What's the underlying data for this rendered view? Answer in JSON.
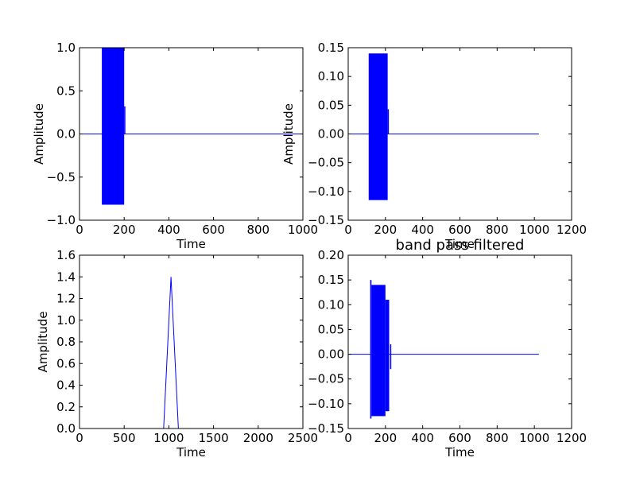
{
  "chart_data": [
    {
      "type": "line",
      "title": "",
      "xlabel": "Time",
      "ylabel": "Amplitude",
      "xlim": [
        0,
        1000
      ],
      "ylim": [
        -1.0,
        1.0
      ],
      "xticks": [
        0,
        200,
        400,
        600,
        800,
        1000
      ],
      "xtick_labels": [
        "0",
        "200",
        "400",
        "600",
        "800",
        "1000"
      ],
      "yticks": [
        -1.0,
        -0.5,
        0.0,
        0.5,
        1.0
      ],
      "ytick_labels": [
        "−1.0",
        "−0.5",
        "0.0",
        "0.5",
        "1.0"
      ],
      "grid": false,
      "color": "#0000ff",
      "series": [
        {
          "x": [
            0,
            100,
            200,
            200,
            1000
          ],
          "y": [
            0,
            0,
            0,
            0,
            0
          ],
          "envelope": [
            {
              "x": [
                100,
                200
              ],
              "ymin": -0.82,
              "ymax": 1.0
            }
          ],
          "tail_x": 200,
          "tail_ymax": 0.32
        }
      ]
    },
    {
      "type": "line",
      "title": "",
      "xlabel": "Time",
      "ylabel": "Amplitude",
      "xlim": [
        0,
        1200
      ],
      "ylim": [
        -0.15,
        0.15
      ],
      "xticks": [
        0,
        200,
        400,
        600,
        800,
        1000,
        1200
      ],
      "xtick_labels": [
        "0",
        "200",
        "400",
        "600",
        "800",
        "1000",
        "1200"
      ],
      "yticks": [
        -0.15,
        -0.1,
        -0.05,
        0.0,
        0.05,
        0.1,
        0.15
      ],
      "ytick_labels": [
        "−0.15",
        "−0.10",
        "−0.05",
        "0.00",
        "0.05",
        "0.10",
        "0.15"
      ],
      "grid": false,
      "color": "#0000ff",
      "series": [
        {
          "x": [
            0,
            1024
          ],
          "y": [
            0,
            0
          ],
          "envelope": [
            {
              "x": [
                110,
                212
              ],
              "ymin": -0.115,
              "ymax": 0.14
            }
          ],
          "tail_x": 212,
          "tail_ymax": 0.043
        }
      ]
    },
    {
      "type": "line",
      "title": "",
      "xlabel": "Time",
      "ylabel": "Amplitude",
      "xlim": [
        0,
        2500
      ],
      "ylim": [
        0.0,
        1.6
      ],
      "xticks": [
        0,
        500,
        1000,
        1500,
        2000,
        2500
      ],
      "xtick_labels": [
        "0",
        "500",
        "1000",
        "1500",
        "2000",
        "2500"
      ],
      "yticks": [
        0.0,
        0.2,
        0.4,
        0.6,
        0.8,
        1.0,
        1.2,
        1.4,
        1.6
      ],
      "ytick_labels": [
        "0.0",
        "0.2",
        "0.4",
        "0.6",
        "0.8",
        "1.0",
        "1.2",
        "1.4",
        "1.6"
      ],
      "grid": false,
      "color": "#0000ff",
      "series": [
        {
          "x": [
            930,
            1024,
            1118
          ],
          "y": [
            -0.2,
            1.4,
            -0.2
          ]
        }
      ]
    },
    {
      "type": "line",
      "title": "band pass filtered",
      "xlabel": "Time",
      "ylabel": "",
      "xlim": [
        0,
        1200
      ],
      "ylim": [
        -0.15,
        0.2
      ],
      "xticks": [
        0,
        200,
        400,
        600,
        800,
        1000,
        1200
      ],
      "xtick_labels": [
        "0",
        "200",
        "400",
        "600",
        "800",
        "1000",
        "1200"
      ],
      "yticks": [
        -0.15,
        -0.1,
        -0.05,
        0.0,
        0.05,
        0.1,
        0.15,
        0.2
      ],
      "ytick_labels": [
        "−0.15",
        "−0.10",
        "−0.05",
        "0.00",
        "0.05",
        "0.10",
        "0.15",
        "0.20"
      ],
      "grid": false,
      "color": "#0000ff",
      "series": [
        {
          "x": [
            0,
            1024
          ],
          "y": [
            0,
            0
          ],
          "envelope": [
            {
              "x": [
                118,
                125
              ],
              "ymin": -0.13,
              "ymax": 0.15
            },
            {
              "x": [
                125,
                200
              ],
              "ymin": -0.125,
              "ymax": 0.14
            },
            {
              "x": [
                200,
                220
              ],
              "ymin": -0.115,
              "ymax": 0.11
            }
          ],
          "tail_x": 225,
          "tail_ymax": 0.02,
          "tail_ymin": -0.03
        }
      ]
    }
  ]
}
